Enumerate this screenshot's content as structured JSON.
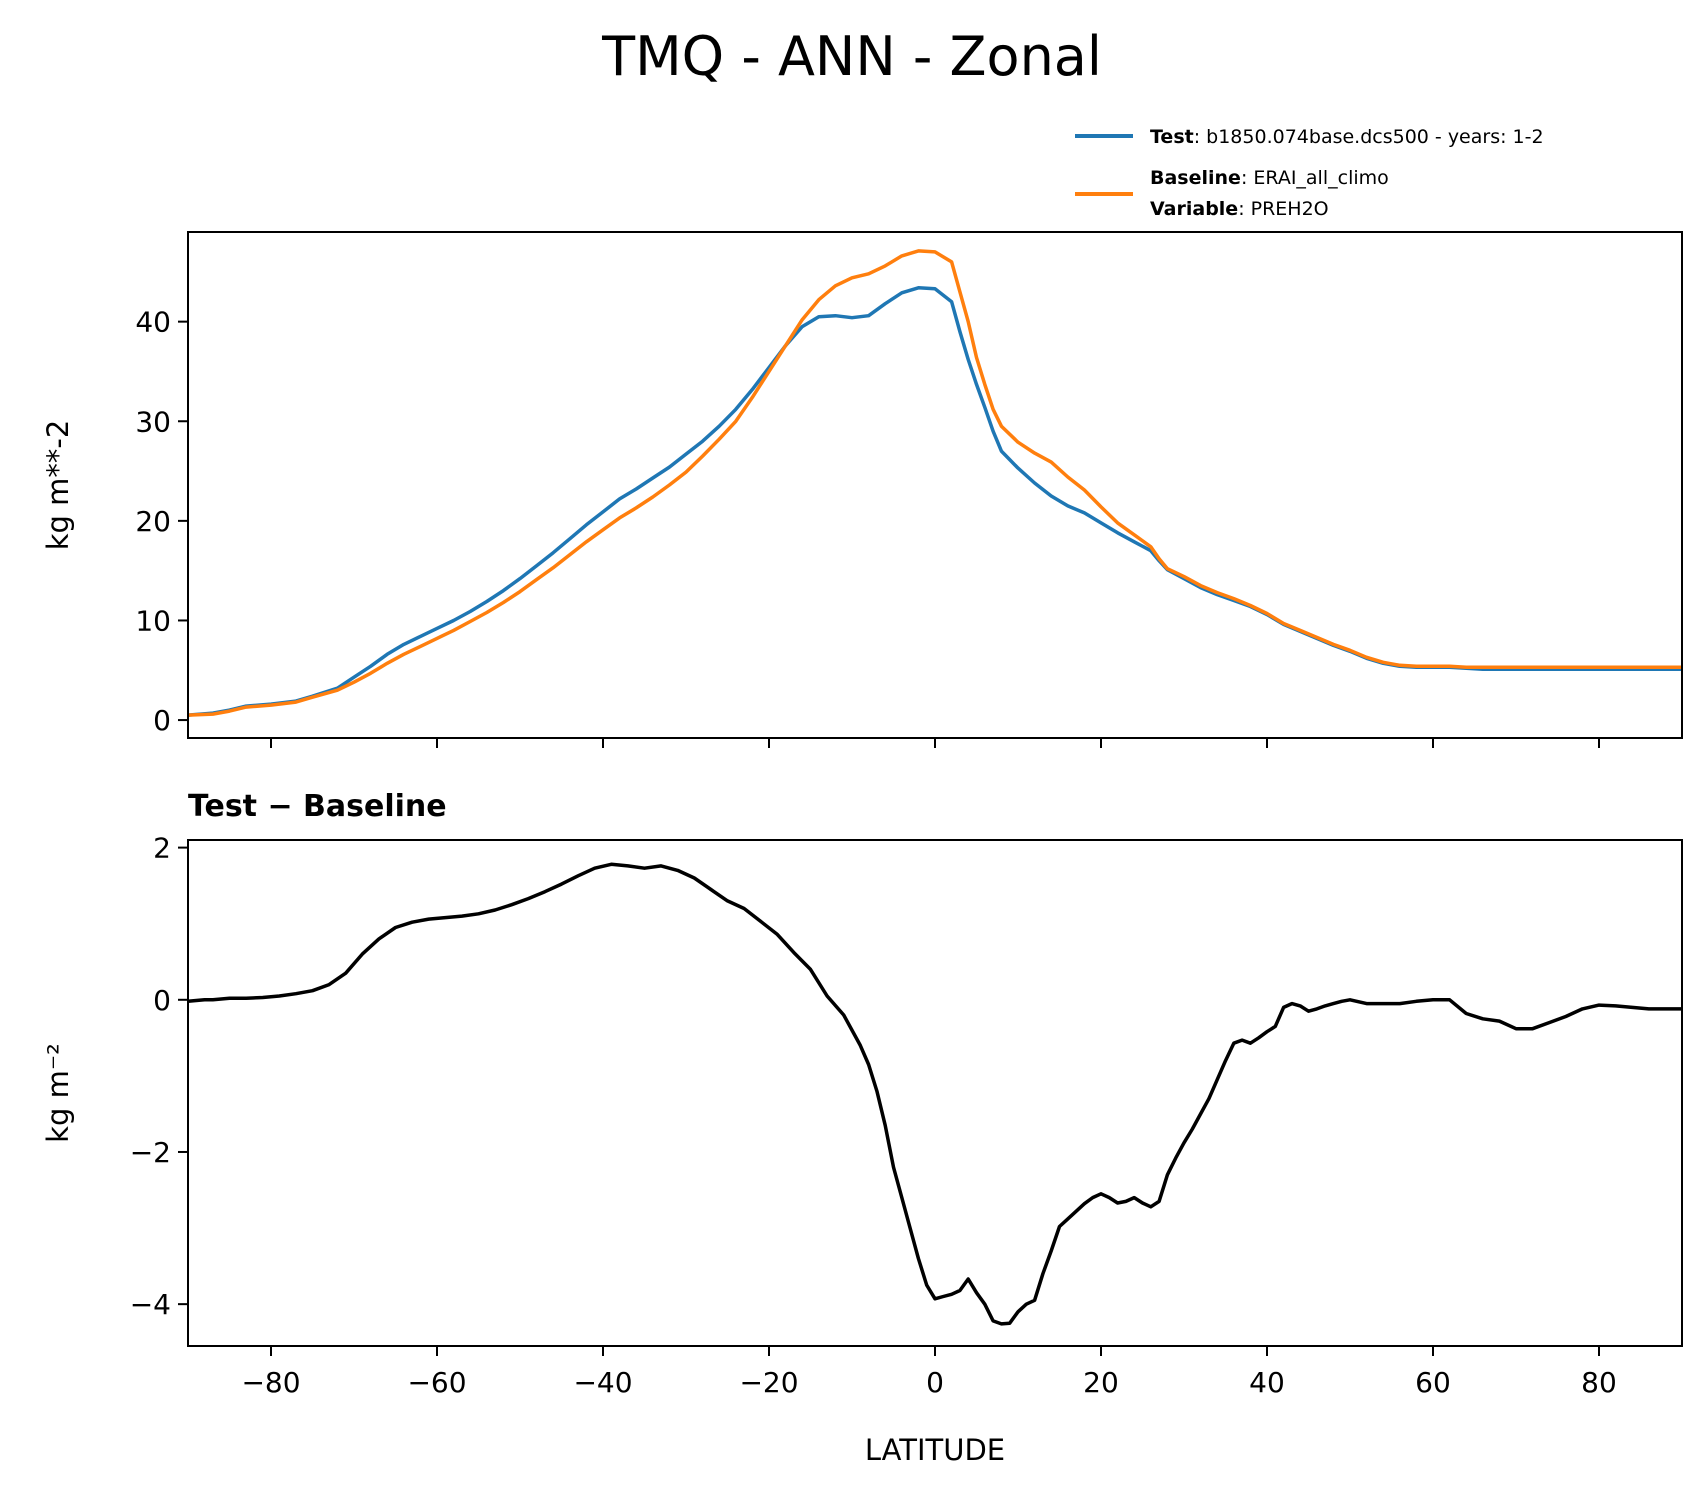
{
  "title": "TMQ - ANN - Zonal",
  "legend": {
    "test_label": "Test",
    "test_text": ": b1850.074base.dcs500 - years: 1-2",
    "baseline_label": "Baseline",
    "baseline_text": ": ERAI_all_climo",
    "variable_label": "Variable",
    "variable_text": ": PREH2O",
    "placement": "above-top-right"
  },
  "colors": {
    "test": "#1f77b4",
    "baseline": "#ff7f0e",
    "diff": "#000000"
  },
  "chart_data": [
    {
      "type": "line",
      "title": "",
      "xlabel": "",
      "ylabel": "kg m**-2",
      "xlim": [
        -90,
        90
      ],
      "ylim": [
        -1.8,
        49
      ],
      "x_ticks": [
        -80,
        -60,
        -40,
        -20,
        0,
        20,
        40,
        60,
        80
      ],
      "y_ticks": [
        0,
        10,
        20,
        30,
        40
      ],
      "y_tick_labels": [
        "0",
        "10",
        "20",
        "30",
        "40"
      ],
      "grid": false,
      "x": [
        -90,
        -87,
        -85,
        -83,
        -80,
        -77,
        -75,
        -72,
        -70,
        -68,
        -66,
        -64,
        -62,
        -60,
        -58,
        -56,
        -54,
        -52,
        -50,
        -48,
        -46,
        -44,
        -42,
        -40,
        -38,
        -36,
        -34,
        -32,
        -30,
        -28,
        -26,
        -24,
        -22,
        -20,
        -18,
        -16,
        -14,
        -12,
        -10,
        -8,
        -6,
        -4,
        -2,
        0,
        2,
        3,
        4,
        5,
        6,
        7,
        8,
        10,
        12,
        14,
        16,
        18,
        20,
        22,
        24,
        26,
        27,
        28,
        30,
        32,
        34,
        36,
        38,
        40,
        42,
        44,
        46,
        48,
        50,
        52,
        54,
        56,
        58,
        60,
        62,
        64,
        66,
        68,
        70,
        72,
        74,
        76,
        78,
        80,
        82,
        84,
        86,
        88,
        90
      ],
      "series": [
        {
          "name": "Test",
          "color": "#1f77b4",
          "values": [
            0.5,
            0.7,
            1.0,
            1.4,
            1.6,
            1.9,
            2.4,
            3.2,
            4.3,
            5.4,
            6.6,
            7.6,
            8.4,
            9.2,
            10.0,
            10.9,
            11.9,
            13.0,
            14.2,
            15.5,
            16.8,
            18.2,
            19.6,
            20.9,
            22.2,
            23.2,
            24.3,
            25.4,
            26.7,
            28.0,
            29.5,
            31.2,
            33.2,
            35.4,
            37.6,
            39.5,
            40.5,
            40.6,
            40.4,
            40.6,
            41.8,
            42.9,
            43.4,
            43.3,
            42.0,
            39.0,
            36.2,
            33.7,
            31.4,
            29.0,
            27.0,
            25.3,
            23.8,
            22.5,
            21.5,
            20.8,
            19.8,
            18.8,
            17.9,
            17.0,
            16.0,
            15.1,
            14.2,
            13.3,
            12.6,
            12.0,
            11.4,
            10.6,
            9.6,
            8.9,
            8.2,
            7.5,
            6.9,
            6.2,
            5.7,
            5.4,
            5.3,
            5.3,
            5.3,
            5.2,
            5.1,
            5.1,
            5.1,
            5.1,
            5.1,
            5.1,
            5.1,
            5.1,
            5.1,
            5.1,
            5.1,
            5.1,
            5.1
          ]
        },
        {
          "name": "Baseline",
          "color": "#ff7f0e",
          "values": [
            0.5,
            0.6,
            0.9,
            1.3,
            1.5,
            1.8,
            2.3,
            3.0,
            3.8,
            4.7,
            5.7,
            6.6,
            7.4,
            8.2,
            9.0,
            9.9,
            10.8,
            11.8,
            12.9,
            14.1,
            15.3,
            16.6,
            17.9,
            19.1,
            20.3,
            21.3,
            22.4,
            23.6,
            24.9,
            26.5,
            28.2,
            30.0,
            32.4,
            35.0,
            37.6,
            40.2,
            42.2,
            43.6,
            44.4,
            44.8,
            45.6,
            46.6,
            47.1,
            47.0,
            46.0,
            43.0,
            40.0,
            36.4,
            33.7,
            31.2,
            29.5,
            27.9,
            26.8,
            25.9,
            24.4,
            23.1,
            21.4,
            19.8,
            18.6,
            17.4,
            16.2,
            15.2,
            14.4,
            13.5,
            12.8,
            12.2,
            11.5,
            10.7,
            9.7,
            9.0,
            8.3,
            7.6,
            7.0,
            6.3,
            5.8,
            5.5,
            5.4,
            5.4,
            5.4,
            5.3,
            5.3,
            5.3,
            5.3,
            5.3,
            5.3,
            5.3,
            5.3,
            5.3,
            5.3,
            5.3,
            5.3,
            5.3,
            5.3
          ]
        }
      ]
    },
    {
      "type": "line",
      "title": "Test − Baseline",
      "xlabel": "LATITUDE",
      "ylabel": "kg m⁻²",
      "xlim": [
        -90,
        90
      ],
      "ylim": [
        -4.55,
        2.1
      ],
      "x_ticks": [
        -80,
        -60,
        -40,
        -20,
        0,
        20,
        40,
        60,
        80
      ],
      "x_tick_labels": [
        "−80",
        "−60",
        "−40",
        "−20",
        "0",
        "20",
        "40",
        "60",
        "80"
      ],
      "y_ticks": [
        -4,
        -2,
        0,
        2
      ],
      "y_tick_labels": [
        "−4",
        "−2",
        "0",
        "2"
      ],
      "grid": false,
      "x": [
        -90,
        -88,
        -87,
        -85,
        -83,
        -81,
        -79,
        -77,
        -75,
        -73,
        -71,
        -69,
        -67,
        -65,
        -63,
        -61,
        -59,
        -57,
        -55,
        -53,
        -51,
        -49,
        -47,
        -45,
        -43,
        -41,
        -39,
        -37,
        -35,
        -33,
        -31,
        -29,
        -27,
        -25,
        -23,
        -21,
        -19,
        -17,
        -15,
        -13,
        -11,
        -9,
        -8,
        -7,
        -6,
        -5,
        -4,
        -3,
        -2,
        -1,
        0,
        1,
        2,
        3,
        4,
        5,
        6,
        7,
        8,
        9,
        10,
        11,
        12,
        13,
        14,
        15,
        16,
        17,
        18,
        19,
        20,
        21,
        22,
        23,
        24,
        25,
        26,
        27,
        28,
        29,
        30,
        31,
        32,
        33,
        34,
        35,
        36,
        37,
        38,
        39,
        40,
        41,
        42,
        43,
        44,
        45,
        46,
        47,
        48,
        49,
        50,
        52,
        54,
        56,
        58,
        60,
        62,
        64,
        66,
        68,
        70,
        72,
        74,
        76,
        78,
        80,
        82,
        84,
        86,
        88,
        90
      ],
      "series": [
        {
          "name": "",
          "color": "#000000",
          "values": [
            -0.02,
            0.0,
            0.0,
            0.02,
            0.02,
            0.03,
            0.05,
            0.08,
            0.12,
            0.2,
            0.35,
            0.6,
            0.8,
            0.95,
            1.02,
            1.06,
            1.08,
            1.1,
            1.13,
            1.18,
            1.25,
            1.33,
            1.42,
            1.52,
            1.63,
            1.73,
            1.78,
            1.76,
            1.73,
            1.76,
            1.7,
            1.6,
            1.45,
            1.3,
            1.2,
            1.03,
            0.86,
            0.62,
            0.4,
            0.05,
            -0.2,
            -0.6,
            -0.85,
            -1.2,
            -1.65,
            -2.2,
            -2.6,
            -3.0,
            -3.4,
            -3.75,
            -3.93,
            -3.9,
            -3.87,
            -3.82,
            -3.67,
            -3.85,
            -4.0,
            -4.22,
            -4.26,
            -4.25,
            -4.1,
            -4.0,
            -3.95,
            -3.6,
            -3.3,
            -2.98,
            -2.88,
            -2.78,
            -2.68,
            -2.6,
            -2.55,
            -2.6,
            -2.67,
            -2.65,
            -2.6,
            -2.67,
            -2.72,
            -2.65,
            -2.3,
            -2.08,
            -1.88,
            -1.7,
            -1.5,
            -1.3,
            -1.05,
            -0.8,
            -0.57,
            -0.53,
            -0.57,
            -0.5,
            -0.42,
            -0.35,
            -0.1,
            -0.05,
            -0.08,
            -0.15,
            -0.12,
            -0.08,
            -0.05,
            -0.02,
            0.0,
            -0.05,
            -0.05,
            -0.05,
            -0.02,
            0.0,
            0.0,
            -0.18,
            -0.25,
            -0.28,
            -0.38,
            -0.38,
            -0.3,
            -0.22,
            -0.12,
            -0.07,
            -0.08,
            -0.1,
            -0.12,
            -0.12,
            -0.12
          ]
        }
      ]
    }
  ]
}
